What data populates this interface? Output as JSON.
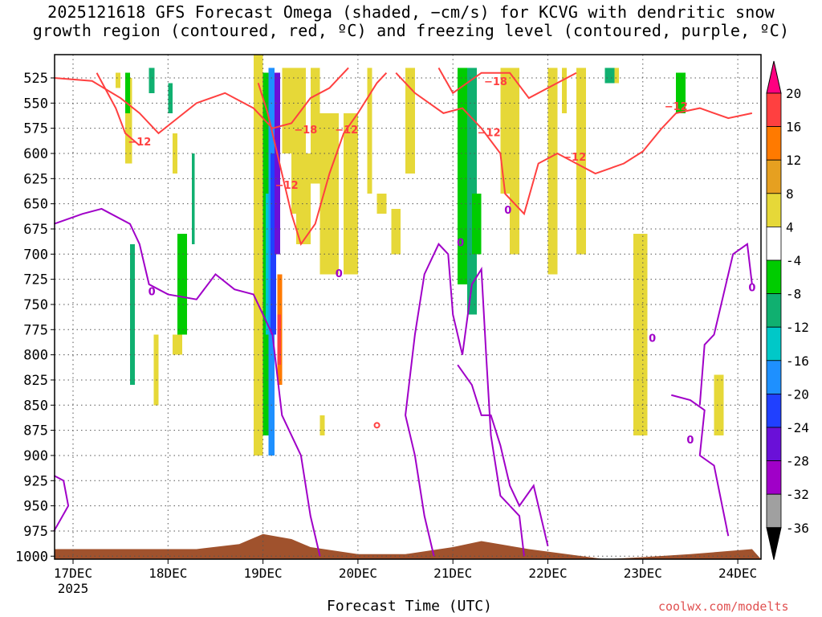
{
  "title": {
    "line1": "2025121618 GFS Forecast Omega (shaded, −cm/s) for KCVG with dendritic snow",
    "line2": "growth region (contoured, red, ºC) and freezing level (contoured, purple, ºC)"
  },
  "xlabel": "Forecast Time (UTC)",
  "credit": "coolwx.com/modelts",
  "chart_data": {
    "type": "heatmap",
    "y_axis": {
      "label": "",
      "levels": [
        525,
        550,
        575,
        600,
        625,
        650,
        675,
        700,
        725,
        750,
        775,
        800,
        825,
        850,
        875,
        900,
        925,
        950,
        975,
        1000
      ],
      "range": [
        510,
        1015
      ],
      "inverted": true
    },
    "x_axis": {
      "ticks": [
        "17DEC",
        "18DEC",
        "19DEC",
        "20DEC",
        "21DEC",
        "22DEC",
        "23DEC",
        "24DEC"
      ],
      "year_label": "2025",
      "range_days": [
        -0.2,
        7.15
      ]
    },
    "grid": true,
    "colorbar": {
      "labels": [
        20,
        16,
        12,
        8,
        4,
        -4,
        -8,
        -12,
        -16,
        -20,
        -24,
        -28,
        -32,
        -36
      ],
      "colors": [
        "#ff0080",
        "#ff4040",
        "#ff7a00",
        "#e6a020",
        "#e6d838",
        "#ffffff",
        "#00cc00",
        "#10b070",
        "#00c8c8",
        "#1e90ff",
        "#2040ff",
        "#6a10d8",
        "#a000c8",
        "#a0a0a0",
        "#000000"
      ],
      "placement": "right"
    },
    "contour_colors": {
      "dgz": "#ff4040",
      "freezing": "#a000c8",
      "terrain": "#a0522d"
    },
    "dgz_labels": [
      {
        "text": "−12",
        "t": 0.7,
        "p": 592
      },
      {
        "text": "−12",
        "t": 2.25,
        "p": 635
      },
      {
        "text": "−18",
        "t": 2.45,
        "p": 580
      },
      {
        "text": "−12",
        "t": 2.88,
        "p": 580
      },
      {
        "text": "−18",
        "t": 4.45,
        "p": 532
      },
      {
        "text": "−12",
        "t": 4.38,
        "p": 583
      },
      {
        "text": "−12",
        "t": 5.28,
        "p": 607
      },
      {
        "text": "−12",
        "t": 6.35,
        "p": 557
      }
    ],
    "freezing_labels": [
      {
        "text": "0",
        "t": 0.83,
        "p": 741
      },
      {
        "text": "0",
        "t": 2.8,
        "p": 723
      },
      {
        "text": "0",
        "t": 4.08,
        "p": 692
      },
      {
        "text": "0",
        "t": 4.58,
        "p": 660
      },
      {
        "text": "0",
        "t": 6.1,
        "p": 787
      },
      {
        "text": "0",
        "t": 6.5,
        "p": 888
      },
      {
        "text": "0",
        "t": 7.15,
        "p": 737
      }
    ]
  }
}
